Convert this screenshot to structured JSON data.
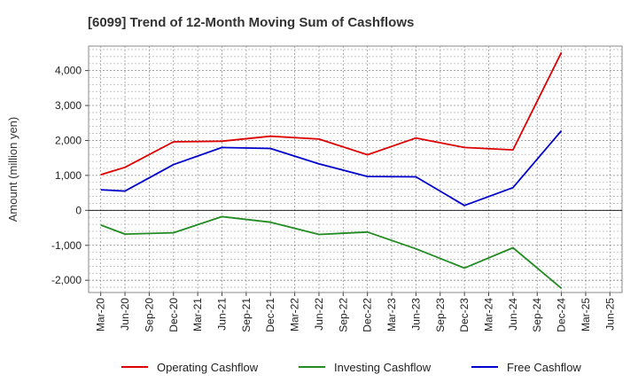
{
  "chart_data": {
    "type": "line",
    "title": "[6099]  Trend of 12-Month Moving Sum of Cashflows",
    "ylabel": "Amount (million yen)",
    "xlabel": "",
    "categories": [
      "Mar-20",
      "Jun-20",
      "Sep-20",
      "Dec-20",
      "Mar-21",
      "Jun-21",
      "Sep-21",
      "Dec-21",
      "Mar-22",
      "Jun-22",
      "Sep-22",
      "Dec-22",
      "Mar-23",
      "Jun-23",
      "Sep-23",
      "Dec-23",
      "Mar-24",
      "Jun-24",
      "Sep-24",
      "Dec-24",
      "Mar-25",
      "Jun-25"
    ],
    "ylim": [
      -2350,
      4700
    ],
    "yticks": [
      -2000,
      -1000,
      0,
      1000,
      2000,
      3000,
      4000
    ],
    "ytick_labels": [
      "-2,000",
      "-1,000",
      "0",
      "1,000",
      "2,000",
      "3,000",
      "4,000"
    ],
    "grid": true,
    "legend_position": "bottom",
    "series": [
      {
        "name": "Operating Cashflow",
        "color": "#dd0000",
        "points": [
          [
            0,
            1020
          ],
          [
            1,
            1230
          ],
          [
            3,
            1960
          ],
          [
            5,
            1980
          ],
          [
            7,
            2120
          ],
          [
            9,
            2040
          ],
          [
            11,
            1590
          ],
          [
            13,
            2070
          ],
          [
            15,
            1800
          ],
          [
            17,
            1730
          ],
          [
            19,
            4520
          ]
        ]
      },
      {
        "name": "Investing Cashflow",
        "color": "#228b22",
        "points": [
          [
            0,
            -420
          ],
          [
            1,
            -680
          ],
          [
            3,
            -640
          ],
          [
            5,
            -180
          ],
          [
            7,
            -340
          ],
          [
            9,
            -690
          ],
          [
            11,
            -620
          ],
          [
            13,
            -1100
          ],
          [
            15,
            -1650
          ],
          [
            17,
            -1070
          ],
          [
            19,
            -2230
          ]
        ]
      },
      {
        "name": "Free Cashflow",
        "color": "#0000cc",
        "points": [
          [
            0,
            590
          ],
          [
            1,
            550
          ],
          [
            3,
            1310
          ],
          [
            5,
            1800
          ],
          [
            7,
            1770
          ],
          [
            9,
            1330
          ],
          [
            11,
            970
          ],
          [
            13,
            960
          ],
          [
            15,
            140
          ],
          [
            17,
            650
          ],
          [
            19,
            2280
          ]
        ]
      }
    ]
  }
}
